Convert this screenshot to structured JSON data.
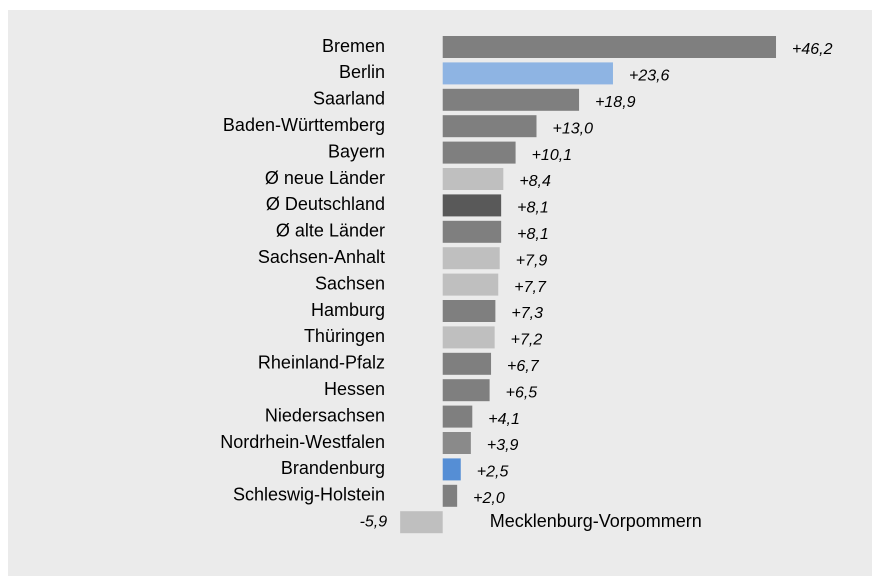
{
  "chart_data": {
    "type": "bar",
    "orientation": "horizontal",
    "categories": [
      "Bremen",
      "Berlin",
      "Saarland",
      "Baden-Württemberg",
      "Bayern",
      "Ø neue Länder",
      "Ø Deutschland",
      "Ø alte Länder",
      "Sachsen-Anhalt",
      "Sachsen",
      "Hamburg",
      "Thüringen",
      "Rheinland-Pfalz",
      "Hessen",
      "Niedersachsen",
      "Nordrhein-Westfalen",
      "Brandenburg",
      "Schleswig-Holstein",
      "Mecklenburg-Vorpommern"
    ],
    "values": [
      46.2,
      23.6,
      18.9,
      13.0,
      10.1,
      8.4,
      8.1,
      8.1,
      7.9,
      7.7,
      7.3,
      7.2,
      6.7,
      6.5,
      4.1,
      3.9,
      2.5,
      2.0,
      -5.9
    ],
    "value_labels": [
      "+46,2",
      "+23,6",
      "+18,9",
      "+13,0",
      "+10,1",
      "+8,4",
      "+8,1",
      "+8,1",
      "+7,9",
      "+7,7",
      "+7,3",
      "+7,2",
      "+6,7",
      "+6,5",
      "+4,1",
      "+3,9",
      "+2,5",
      "+2,0",
      "-5,9"
    ],
    "colors": [
      "#7f7f7f",
      "#8eb4e3",
      "#7f7f7f",
      "#7f7f7f",
      "#7f7f7f",
      "#bfbfbf",
      "#595959",
      "#7f7f7f",
      "#bfbfbf",
      "#bfbfbf",
      "#7f7f7f",
      "#bfbfbf",
      "#7f7f7f",
      "#7f7f7f",
      "#7f7f7f",
      "#8a8a8a",
      "#558ed5",
      "#7f7f7f",
      "#bfbfbf"
    ],
    "negative_label_color": "#ff0000",
    "xlim": [
      -8,
      48
    ]
  }
}
